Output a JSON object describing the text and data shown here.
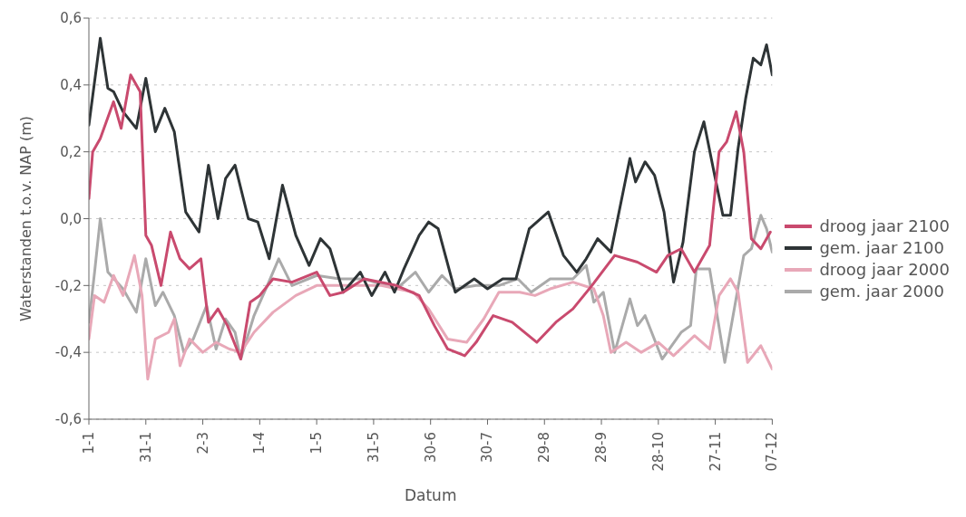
{
  "chart_data": {
    "type": "line",
    "xlabel": "Datum",
    "ylabel": "Waterstanden t.o.v. NAP (m)",
    "xlim": [
      "--01-01",
      "--12-27"
    ],
    "xticks": [
      {
        "value": "--01-01",
        "label": "1-1"
      },
      {
        "value": "--01-31",
        "label": "31-1"
      },
      {
        "value": "--03-02",
        "label": "2-3"
      },
      {
        "value": "--04-01",
        "label": "1-4"
      },
      {
        "value": "--05-01",
        "label": "1-5"
      },
      {
        "value": "--05-31",
        "label": "31-5"
      },
      {
        "value": "--06-30",
        "label": "30-6"
      },
      {
        "value": "--07-30",
        "label": "30-7"
      },
      {
        "value": "--08-29",
        "label": "29-8"
      },
      {
        "value": "--09-28",
        "label": "28-9"
      },
      {
        "value": "--10-28",
        "label": "28-10"
      },
      {
        "value": "--11-27",
        "label": "27-11"
      },
      {
        "value": "--12-27",
        "label": "07-12"
      }
    ],
    "ylim": [
      -0.6,
      0.6
    ],
    "yticks": [
      {
        "value": -0.6,
        "label": "-0,6"
      },
      {
        "value": -0.4,
        "label": "-0,4"
      },
      {
        "value": -0.2,
        "label": "-0,2"
      },
      {
        "value": 0,
        "label": "0,0"
      },
      {
        "value": 0.2,
        "label": "0,2"
      },
      {
        "value": 0.4,
        "label": "0,4"
      },
      {
        "value": 0.6,
        "label": "0,6"
      }
    ],
    "grid": "y",
    "legend": "right",
    "marker": "none",
    "line_style": "solid",
    "series": [
      {
        "name": "droog jaar 2100",
        "color": "#c94a6e",
        "x": [
          "--01-01",
          "--01-03",
          "--01-07",
          "--01-14",
          "--01-18",
          "--01-23",
          "--01-28",
          "--01-31",
          "--02-03",
          "--02-08",
          "--02-13",
          "--02-18",
          "--02-23",
          "--03-01",
          "--03-05",
          "--03-10",
          "--03-15",
          "--03-22",
          "--03-27",
          "--04-01",
          "--04-08",
          "--04-18",
          "--05-01",
          "--05-08",
          "--05-15",
          "--05-26",
          "--06-12",
          "--06-24",
          "--07-02",
          "--07-09",
          "--07-18",
          "--07-24",
          "--08-02",
          "--08-12",
          "--08-25",
          "--09-04",
          "--09-13",
          "--09-23",
          "--10-05",
          "--10-17",
          "--10-27",
          "--11-02",
          "--11-09",
          "--11-16",
          "--11-24",
          "--11-29",
          "--12-03",
          "--12-08",
          "--12-12",
          "--12-16",
          "--12-21",
          "--12-26"
        ],
        "values": [
          0.06,
          0.2,
          0.24,
          0.35,
          0.27,
          0.43,
          0.38,
          -0.05,
          -0.08,
          -0.2,
          -0.04,
          -0.12,
          -0.15,
          -0.12,
          -0.31,
          -0.27,
          -0.32,
          -0.42,
          -0.25,
          -0.23,
          -0.18,
          -0.19,
          -0.16,
          -0.23,
          -0.22,
          -0.18,
          -0.2,
          -0.23,
          -0.32,
          -0.39,
          -0.41,
          -0.37,
          -0.29,
          -0.31,
          -0.37,
          -0.31,
          -0.27,
          -0.2,
          -0.11,
          -0.13,
          -0.16,
          -0.11,
          -0.09,
          -0.16,
          -0.08,
          0.2,
          0.23,
          0.32,
          0.2,
          -0.06,
          -0.09,
          -0.04
        ]
      },
      {
        "name": "gem. jaar 2100",
        "color": "#2e3436",
        "x": [
          "--01-01",
          "--01-07",
          "--01-11",
          "--01-14",
          "--01-19",
          "--01-26",
          "--01-31",
          "--02-05",
          "--02-10",
          "--02-15",
          "--02-21",
          "--02-28",
          "--03-05",
          "--03-10",
          "--03-14",
          "--03-19",
          "--03-26",
          "--03-31",
          "--04-06",
          "--04-13",
          "--04-20",
          "--04-27",
          "--05-03",
          "--05-08",
          "--05-15",
          "--05-24",
          "--05-30",
          "--06-06",
          "--06-11",
          "--06-16",
          "--06-24",
          "--06-29",
          "--07-04",
          "--07-13",
          "--07-23",
          "--07-30",
          "--08-07",
          "--08-14",
          "--08-21",
          "--08-31",
          "--09-08",
          "--09-15",
          "--09-20",
          "--09-26",
          "--10-03",
          "--10-08",
          "--10-13",
          "--10-16",
          "--10-21",
          "--10-26",
          "--10-31",
          "--11-05",
          "--11-10",
          "--11-16",
          "--11-21",
          "--11-27",
          "--12-01",
          "--12-05",
          "--12-09",
          "--12-13",
          "--12-17",
          "--12-21",
          "--12-24",
          "--12-27"
        ],
        "values": [
          0.28,
          0.54,
          0.39,
          0.38,
          0.32,
          0.27,
          0.42,
          0.26,
          0.33,
          0.26,
          0.02,
          -0.04,
          0.16,
          0.0,
          0.12,
          0.16,
          0.0,
          -0.01,
          -0.12,
          0.1,
          -0.05,
          -0.14,
          -0.06,
          -0.09,
          -0.22,
          -0.16,
          -0.23,
          -0.16,
          -0.22,
          -0.15,
          -0.05,
          -0.01,
          -0.03,
          -0.22,
          -0.18,
          -0.21,
          -0.18,
          -0.18,
          -0.03,
          0.02,
          -0.11,
          -0.16,
          -0.12,
          -0.06,
          -0.1,
          0.04,
          0.18,
          0.11,
          0.17,
          0.13,
          0.02,
          -0.19,
          -0.07,
          0.2,
          0.29,
          0.12,
          0.01,
          0.01,
          0.21,
          0.36,
          0.48,
          0.46,
          0.52,
          0.43
        ]
      },
      {
        "name": "droog jaar 2000",
        "color": "#e8a8b8",
        "x": [
          "--01-01",
          "--01-04",
          "--01-09",
          "--01-14",
          "--01-19",
          "--01-25",
          "--01-29",
          "--02-01",
          "--02-05",
          "--02-12",
          "--02-15",
          "--02-18",
          "--02-23",
          "--03-02",
          "--03-09",
          "--03-16",
          "--03-22",
          "--03-29",
          "--04-08",
          "--04-20",
          "--05-01",
          "--05-13",
          "--05-18",
          "--06-04",
          "--06-21",
          "--06-29",
          "--07-09",
          "--07-19",
          "--07-28",
          "--08-05",
          "--08-16",
          "--08-24",
          "--09-01",
          "--09-13",
          "--09-24",
          "--09-29",
          "--10-03",
          "--10-11",
          "--10-19",
          "--10-28",
          "--11-05",
          "--11-16",
          "--11-24",
          "--11-29",
          "--12-05",
          "--12-09",
          "--12-14",
          "--12-21",
          "--12-27"
        ],
        "values": [
          -0.36,
          -0.23,
          -0.25,
          -0.17,
          -0.23,
          -0.11,
          -0.23,
          -0.48,
          -0.36,
          -0.34,
          -0.3,
          -0.44,
          -0.36,
          -0.4,
          -0.37,
          -0.39,
          -0.4,
          -0.34,
          -0.28,
          -0.23,
          -0.2,
          -0.2,
          -0.2,
          -0.2,
          -0.22,
          -0.27,
          -0.36,
          -0.37,
          -0.3,
          -0.22,
          -0.22,
          -0.23,
          -0.21,
          -0.19,
          -0.21,
          -0.29,
          -0.4,
          -0.37,
          -0.4,
          -0.37,
          -0.41,
          -0.35,
          -0.39,
          -0.23,
          -0.18,
          -0.22,
          -0.43,
          -0.38,
          -0.45
        ]
      },
      {
        "name": "gem. jaar 2000",
        "color": "#aaaaaa",
        "x": [
          "--01-01",
          "--01-04",
          "--01-07",
          "--01-11",
          "--01-19",
          "--01-26",
          "--01-31",
          "--02-05",
          "--02-09",
          "--02-15",
          "--02-20",
          "--02-25",
          "--03-04",
          "--03-09",
          "--03-14",
          "--03-19",
          "--03-22",
          "--03-29",
          "--04-05",
          "--04-11",
          "--04-18",
          "--05-01",
          "--05-13",
          "--05-26",
          "--06-12",
          "--06-22",
          "--06-29",
          "--07-06",
          "--07-13",
          "--07-24",
          "--08-05",
          "--08-15",
          "--08-22",
          "--09-01",
          "--09-13",
          "--09-20",
          "--09-24",
          "--09-29",
          "--10-05",
          "--10-13",
          "--10-17",
          "--10-21",
          "--10-30",
          "--11-09",
          "--11-14",
          "--11-17",
          "--11-24",
          "--12-02",
          "--12-12",
          "--12-16",
          "--12-21",
          "--12-24",
          "--12-27"
        ],
        "values": [
          -0.31,
          -0.16,
          0.0,
          -0.16,
          -0.21,
          -0.28,
          -0.12,
          -0.26,
          -0.22,
          -0.29,
          -0.4,
          -0.36,
          -0.26,
          -0.39,
          -0.3,
          -0.34,
          -0.42,
          -0.29,
          -0.2,
          -0.12,
          -0.2,
          -0.17,
          -0.18,
          -0.18,
          -0.21,
          -0.16,
          -0.22,
          -0.17,
          -0.21,
          -0.2,
          -0.2,
          -0.18,
          -0.22,
          -0.18,
          -0.18,
          -0.14,
          -0.25,
          -0.22,
          -0.4,
          -0.24,
          -0.32,
          -0.29,
          -0.42,
          -0.34,
          -0.32,
          -0.15,
          -0.15,
          -0.43,
          -0.11,
          -0.09,
          0.01,
          -0.03,
          -0.1
        ]
      }
    ]
  }
}
